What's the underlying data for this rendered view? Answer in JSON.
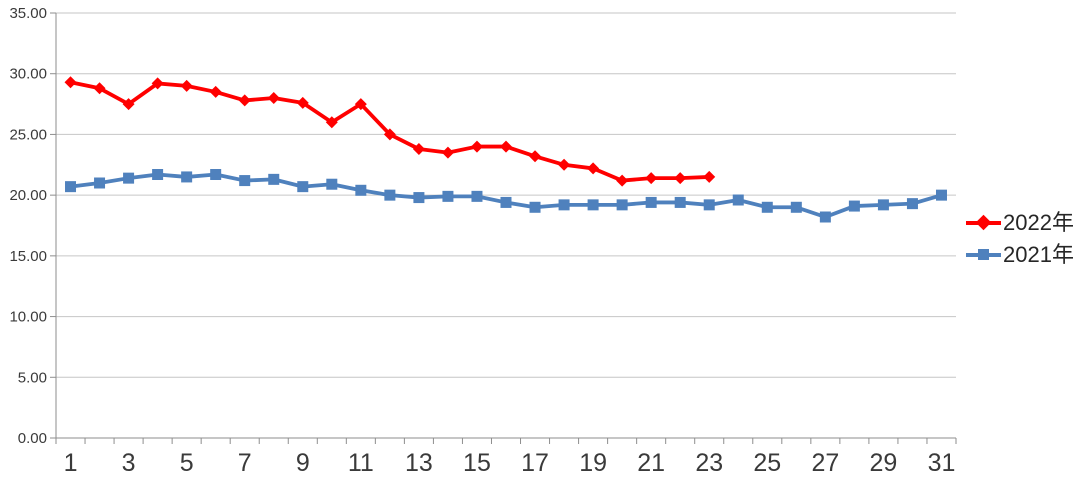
{
  "chart_data": {
    "type": "line",
    "title": "",
    "xlabel": "",
    "ylabel": "",
    "x": [
      1,
      2,
      3,
      4,
      5,
      6,
      7,
      8,
      9,
      10,
      11,
      12,
      13,
      14,
      15,
      16,
      17,
      18,
      19,
      20,
      21,
      22,
      23,
      24,
      25,
      26,
      27,
      28,
      29,
      30,
      31
    ],
    "xtick_labels": [
      "1",
      "3",
      "5",
      "7",
      "9",
      "11",
      "13",
      "15",
      "17",
      "19",
      "21",
      "23",
      "25",
      "27",
      "29",
      "31"
    ],
    "ytick_labels": [
      "0.00",
      "5.00",
      "10.00",
      "15.00",
      "20.00",
      "25.00",
      "30.00",
      "35.00"
    ],
    "ylim": [
      0,
      35
    ],
    "ytick_step": 5,
    "grid": "horizontal",
    "legend_position": "right",
    "series": [
      {
        "name": "2022年",
        "color": "#FF0000",
        "marker": "diamond",
        "values": [
          29.3,
          28.8,
          27.5,
          29.2,
          29.0,
          28.5,
          27.8,
          28.0,
          27.6,
          26.0,
          27.5,
          25.0,
          23.8,
          23.5,
          24.0,
          24.0,
          23.2,
          22.5,
          22.2,
          21.2,
          21.4,
          21.4,
          21.5
        ]
      },
      {
        "name": "2021年",
        "color": "#4F81BD",
        "marker": "square",
        "values": [
          20.7,
          21.0,
          21.4,
          21.7,
          21.5,
          21.7,
          21.2,
          21.3,
          20.7,
          20.9,
          20.4,
          20.0,
          19.8,
          19.9,
          19.9,
          19.4,
          19.0,
          19.2,
          19.2,
          19.2,
          19.4,
          19.4,
          19.2,
          19.6,
          19.0,
          19.0,
          18.2,
          19.1,
          19.2,
          19.3,
          20.0
        ]
      }
    ],
    "colors": {
      "gridline": "#C6C6C6",
      "axis": "#8E8E8E",
      "tick_text": "#3A3A3A"
    }
  }
}
